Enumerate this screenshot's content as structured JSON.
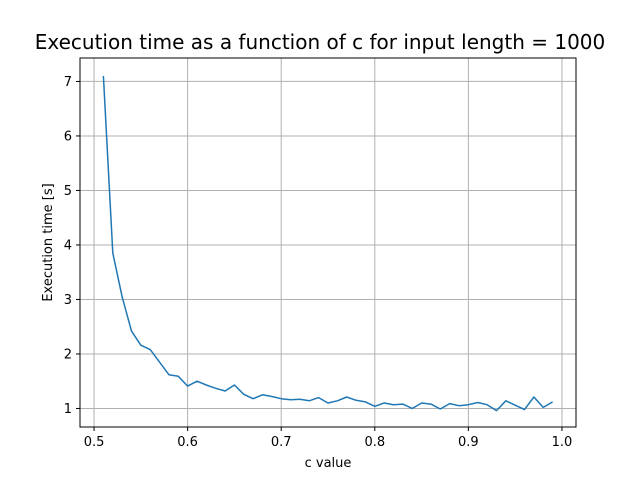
{
  "chart_data": {
    "type": "line",
    "title": "Execution time as a function of c for input length =  1000",
    "xlabel": "c value",
    "ylabel": "Execution time [s]",
    "xlim": [
      0.485,
      1.015
    ],
    "ylim": [
      0.66,
      7.43
    ],
    "xticks": [
      0.5,
      0.6,
      0.7,
      0.8,
      0.9,
      1.0
    ],
    "xtick_labels": [
      "0.5",
      "0.6",
      "0.7",
      "0.8",
      "0.9",
      "1.0"
    ],
    "yticks": [
      1,
      2,
      3,
      4,
      5,
      6,
      7
    ],
    "ytick_labels": [
      "1",
      "2",
      "3",
      "4",
      "5",
      "6",
      "7"
    ],
    "grid": true,
    "series": [
      {
        "color": "#1f77b4",
        "x": [
          0.51,
          0.52,
          0.53,
          0.54,
          0.55,
          0.56,
          0.57,
          0.58,
          0.59,
          0.6,
          0.61,
          0.62,
          0.63,
          0.64,
          0.65,
          0.66,
          0.67,
          0.68,
          0.69,
          0.7,
          0.71,
          0.72,
          0.73,
          0.74,
          0.75,
          0.76,
          0.77,
          0.78,
          0.79,
          0.8,
          0.81,
          0.82,
          0.83,
          0.84,
          0.85,
          0.86,
          0.87,
          0.88,
          0.89,
          0.9,
          0.91,
          0.92,
          0.93,
          0.94,
          0.95,
          0.96,
          0.97,
          0.98,
          0.99
        ],
        "y": [
          7.1,
          3.85,
          3.05,
          2.42,
          2.16,
          2.08,
          1.85,
          1.62,
          1.59,
          1.41,
          1.5,
          1.43,
          1.37,
          1.32,
          1.43,
          1.26,
          1.18,
          1.25,
          1.22,
          1.18,
          1.16,
          1.17,
          1.14,
          1.2,
          1.1,
          1.14,
          1.21,
          1.15,
          1.12,
          1.04,
          1.1,
          1.07,
          1.08,
          1.0,
          1.1,
          1.08,
          0.99,
          1.09,
          1.05,
          1.07,
          1.11,
          1.07,
          0.96,
          1.14,
          1.06,
          0.98,
          1.21,
          1.02,
          1.12
        ]
      }
    ]
  }
}
